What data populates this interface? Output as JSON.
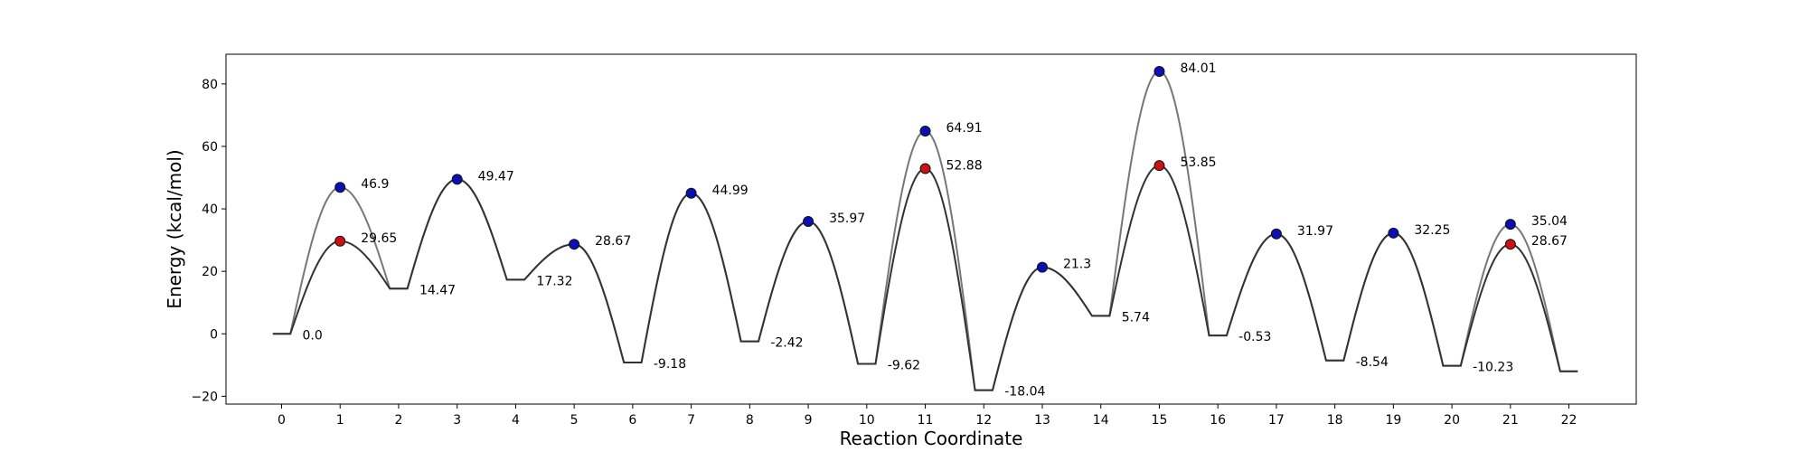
{
  "chart_data": {
    "type": "line",
    "title": "",
    "xlabel": "Reaction Coordinate",
    "ylabel": "Energy (kcal/mol)",
    "xlim": [
      -0.95,
      23.15
    ],
    "ylim": [
      -22.5,
      89.5
    ],
    "xticks": [
      0,
      1,
      2,
      3,
      4,
      5,
      6,
      7,
      8,
      9,
      10,
      11,
      12,
      13,
      14,
      15,
      16,
      17,
      18,
      19,
      20,
      21,
      22
    ],
    "yticks": [
      -20,
      0,
      20,
      40,
      60,
      80
    ],
    "grid": false,
    "legend": "none",
    "colors": {
      "pathway_a": "#777777",
      "pathway_b": "#333333",
      "ts_a": "#0b10b5",
      "ts_b": "#cc1111"
    },
    "intermediates": [
      {
        "x": 0,
        "value": 0.0,
        "label": "0.0"
      },
      {
        "x": 2,
        "value": 14.47,
        "label": "14.47"
      },
      {
        "x": 4,
        "value": 17.32,
        "label": "17.32"
      },
      {
        "x": 6,
        "value": -9.18,
        "label": "-9.18"
      },
      {
        "x": 8,
        "value": -2.42,
        "label": "-2.42"
      },
      {
        "x": 10,
        "value": -9.62,
        "label": "-9.62"
      },
      {
        "x": 12,
        "value": -18.04,
        "label": "-18.04"
      },
      {
        "x": 14,
        "value": 5.74,
        "label": "5.74"
      },
      {
        "x": 16,
        "value": -0.53,
        "label": "-0.53"
      },
      {
        "x": 18,
        "value": -8.54,
        "label": "-8.54"
      },
      {
        "x": 20,
        "value": -10.23,
        "label": "-10.23"
      },
      {
        "x": 22,
        "value": -12.0,
        "label": ""
      }
    ],
    "transition_states": [
      {
        "x": 1,
        "a": 46.9,
        "b": 29.65,
        "label_a": "46.9",
        "label_b": "29.65"
      },
      {
        "x": 3,
        "a": 49.47,
        "b": 49.47,
        "label_a": "49.47",
        "label_b": ""
      },
      {
        "x": 5,
        "a": 28.67,
        "b": 28.67,
        "label_a": "28.67",
        "label_b": ""
      },
      {
        "x": 7,
        "a": 44.99,
        "b": 44.99,
        "label_a": "44.99",
        "label_b": ""
      },
      {
        "x": 9,
        "a": 35.97,
        "b": 35.97,
        "label_a": "35.97",
        "label_b": ""
      },
      {
        "x": 11,
        "a": 64.91,
        "b": 52.88,
        "label_a": "64.91",
        "label_b": "52.88"
      },
      {
        "x": 13,
        "a": 21.3,
        "b": 21.3,
        "label_a": "21.3",
        "label_b": ""
      },
      {
        "x": 15,
        "a": 84.01,
        "b": 53.85,
        "label_a": "84.01",
        "label_b": "53.85"
      },
      {
        "x": 17,
        "a": 31.97,
        "b": 31.97,
        "label_a": "31.97",
        "label_b": ""
      },
      {
        "x": 19,
        "a": 32.25,
        "b": 32.25,
        "label_a": "32.25",
        "label_b": ""
      },
      {
        "x": 21,
        "a": 35.04,
        "b": 28.67,
        "label_a": "35.04",
        "label_b": "28.67"
      }
    ]
  }
}
